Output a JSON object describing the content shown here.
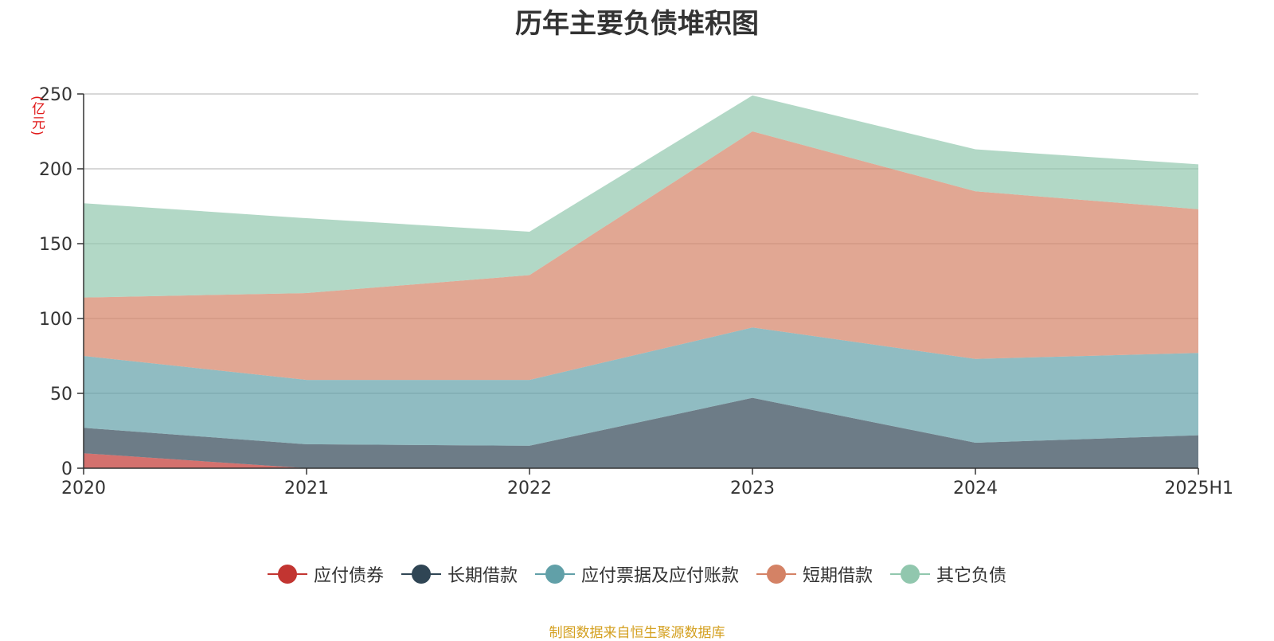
{
  "colors": {
    "bond_payable": "#c23531",
    "long_term_loans": "#2f4554",
    "notes_accounts_payable": "#61a0a8",
    "short_term_loans": "#d48265",
    "other_liabilities": "#91c7ae"
  },
  "chart_data": {
    "type": "area",
    "stacked": true,
    "title": "历年主要负债堆积图",
    "ylabel": "(亿元)",
    "xlabel": "",
    "categories": [
      "2020",
      "2021",
      "2022",
      "2023",
      "2024",
      "2025H1"
    ],
    "ylim": [
      0,
      250
    ],
    "yticks": [
      0,
      50,
      100,
      150,
      200,
      250
    ],
    "grid": true,
    "legend_position": "bottom",
    "series": [
      {
        "name": "应付债券",
        "color": "#c23531",
        "values": [
          10,
          0,
          0,
          0,
          0,
          0
        ]
      },
      {
        "name": "长期借款",
        "color": "#2f4554",
        "values": [
          17,
          16,
          15,
          47,
          17,
          22
        ]
      },
      {
        "name": "应付票据及应付账款",
        "color": "#61a0a8",
        "values": [
          48,
          43,
          44,
          47,
          56,
          55
        ]
      },
      {
        "name": "短期借款",
        "color": "#d48265",
        "values": [
          39,
          58,
          70,
          131,
          112,
          96
        ]
      },
      {
        "name": "其它负债",
        "color": "#91c7ae",
        "values": [
          63,
          50,
          29,
          24,
          28,
          30
        ]
      }
    ]
  },
  "footer": {
    "source": "制图数据来自恒生聚源数据库"
  }
}
